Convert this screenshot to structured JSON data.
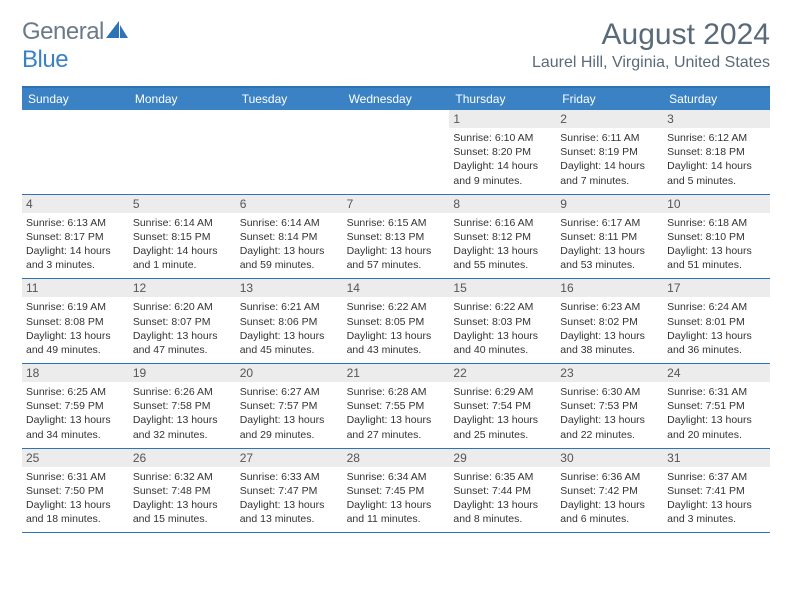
{
  "logo": {
    "general": "General",
    "blue": "Blue"
  },
  "title": "August 2024",
  "location": "Laurel Hill, Virginia, United States",
  "colors": {
    "header_bar": "#3b82c4",
    "rule": "#2e74b5",
    "day_number_bg": "#ececec",
    "text_muted": "#5a6a78",
    "text": "#333333",
    "background": "#ffffff"
  },
  "weekdays": [
    "Sunday",
    "Monday",
    "Tuesday",
    "Wednesday",
    "Thursday",
    "Friday",
    "Saturday"
  ],
  "weeks": [
    [
      {
        "n": "",
        "t": ""
      },
      {
        "n": "",
        "t": ""
      },
      {
        "n": "",
        "t": ""
      },
      {
        "n": "",
        "t": ""
      },
      {
        "n": "1",
        "t": "Sunrise: 6:10 AM\nSunset: 8:20 PM\nDaylight: 14 hours and 9 minutes."
      },
      {
        "n": "2",
        "t": "Sunrise: 6:11 AM\nSunset: 8:19 PM\nDaylight: 14 hours and 7 minutes."
      },
      {
        "n": "3",
        "t": "Sunrise: 6:12 AM\nSunset: 8:18 PM\nDaylight: 14 hours and 5 minutes."
      }
    ],
    [
      {
        "n": "4",
        "t": "Sunrise: 6:13 AM\nSunset: 8:17 PM\nDaylight: 14 hours and 3 minutes."
      },
      {
        "n": "5",
        "t": "Sunrise: 6:14 AM\nSunset: 8:15 PM\nDaylight: 14 hours and 1 minute."
      },
      {
        "n": "6",
        "t": "Sunrise: 6:14 AM\nSunset: 8:14 PM\nDaylight: 13 hours and 59 minutes."
      },
      {
        "n": "7",
        "t": "Sunrise: 6:15 AM\nSunset: 8:13 PM\nDaylight: 13 hours and 57 minutes."
      },
      {
        "n": "8",
        "t": "Sunrise: 6:16 AM\nSunset: 8:12 PM\nDaylight: 13 hours and 55 minutes."
      },
      {
        "n": "9",
        "t": "Sunrise: 6:17 AM\nSunset: 8:11 PM\nDaylight: 13 hours and 53 minutes."
      },
      {
        "n": "10",
        "t": "Sunrise: 6:18 AM\nSunset: 8:10 PM\nDaylight: 13 hours and 51 minutes."
      }
    ],
    [
      {
        "n": "11",
        "t": "Sunrise: 6:19 AM\nSunset: 8:08 PM\nDaylight: 13 hours and 49 minutes."
      },
      {
        "n": "12",
        "t": "Sunrise: 6:20 AM\nSunset: 8:07 PM\nDaylight: 13 hours and 47 minutes."
      },
      {
        "n": "13",
        "t": "Sunrise: 6:21 AM\nSunset: 8:06 PM\nDaylight: 13 hours and 45 minutes."
      },
      {
        "n": "14",
        "t": "Sunrise: 6:22 AM\nSunset: 8:05 PM\nDaylight: 13 hours and 43 minutes."
      },
      {
        "n": "15",
        "t": "Sunrise: 6:22 AM\nSunset: 8:03 PM\nDaylight: 13 hours and 40 minutes."
      },
      {
        "n": "16",
        "t": "Sunrise: 6:23 AM\nSunset: 8:02 PM\nDaylight: 13 hours and 38 minutes."
      },
      {
        "n": "17",
        "t": "Sunrise: 6:24 AM\nSunset: 8:01 PM\nDaylight: 13 hours and 36 minutes."
      }
    ],
    [
      {
        "n": "18",
        "t": "Sunrise: 6:25 AM\nSunset: 7:59 PM\nDaylight: 13 hours and 34 minutes."
      },
      {
        "n": "19",
        "t": "Sunrise: 6:26 AM\nSunset: 7:58 PM\nDaylight: 13 hours and 32 minutes."
      },
      {
        "n": "20",
        "t": "Sunrise: 6:27 AM\nSunset: 7:57 PM\nDaylight: 13 hours and 29 minutes."
      },
      {
        "n": "21",
        "t": "Sunrise: 6:28 AM\nSunset: 7:55 PM\nDaylight: 13 hours and 27 minutes."
      },
      {
        "n": "22",
        "t": "Sunrise: 6:29 AM\nSunset: 7:54 PM\nDaylight: 13 hours and 25 minutes."
      },
      {
        "n": "23",
        "t": "Sunrise: 6:30 AM\nSunset: 7:53 PM\nDaylight: 13 hours and 22 minutes."
      },
      {
        "n": "24",
        "t": "Sunrise: 6:31 AM\nSunset: 7:51 PM\nDaylight: 13 hours and 20 minutes."
      }
    ],
    [
      {
        "n": "25",
        "t": "Sunrise: 6:31 AM\nSunset: 7:50 PM\nDaylight: 13 hours and 18 minutes."
      },
      {
        "n": "26",
        "t": "Sunrise: 6:32 AM\nSunset: 7:48 PM\nDaylight: 13 hours and 15 minutes."
      },
      {
        "n": "27",
        "t": "Sunrise: 6:33 AM\nSunset: 7:47 PM\nDaylight: 13 hours and 13 minutes."
      },
      {
        "n": "28",
        "t": "Sunrise: 6:34 AM\nSunset: 7:45 PM\nDaylight: 13 hours and 11 minutes."
      },
      {
        "n": "29",
        "t": "Sunrise: 6:35 AM\nSunset: 7:44 PM\nDaylight: 13 hours and 8 minutes."
      },
      {
        "n": "30",
        "t": "Sunrise: 6:36 AM\nSunset: 7:42 PM\nDaylight: 13 hours and 6 minutes."
      },
      {
        "n": "31",
        "t": "Sunrise: 6:37 AM\nSunset: 7:41 PM\nDaylight: 13 hours and 3 minutes."
      }
    ]
  ]
}
